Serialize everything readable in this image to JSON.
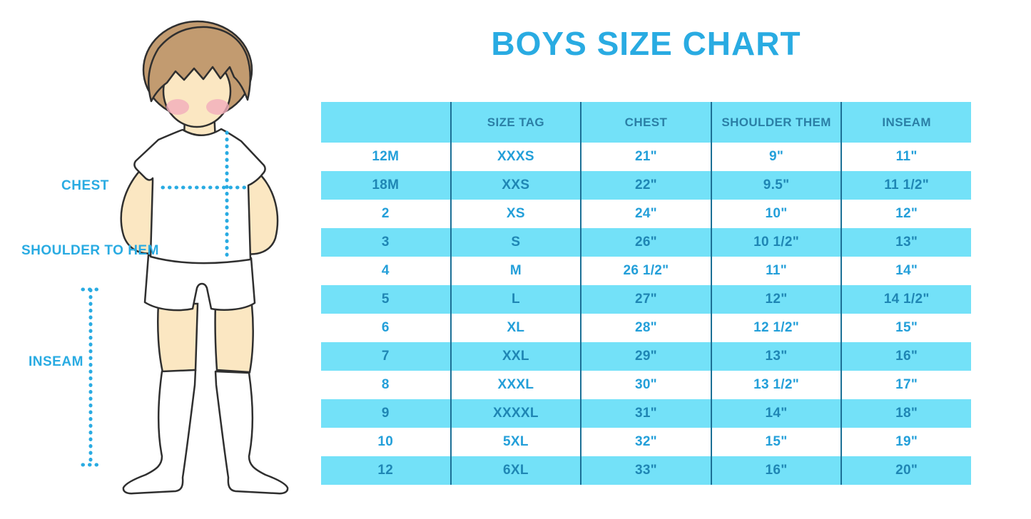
{
  "title": "BOYS SIZE CHART",
  "colors": {
    "title_blue": "#29ABE2",
    "band_cyan": "#73E1F8",
    "divider_blue": "#1C7096",
    "text_on_white_row": "#239FD9",
    "text_on_cyan_row": "#1F86B4",
    "header_text": "#2B7FA6",
    "dotted_line": "#29ABE2",
    "skin": "#FBE7C2",
    "hair": "#C29B70",
    "outline": "#2F2F2F",
    "cheek_pink": "#F2AEBB"
  },
  "figure": {
    "description": "boy-illustration",
    "labels": {
      "chest": "CHEST",
      "shoulder_to_hem": "SHOULDER TO HEM",
      "inseam": "INSEAM"
    }
  },
  "chart_data": {
    "type": "table",
    "title": "BOYS SIZE CHART",
    "columns": [
      "",
      "SIZE TAG",
      "CHEST",
      "SHOULDER THEM",
      "INSEAM"
    ],
    "rows": [
      [
        "12M",
        "XXXS",
        "21\"",
        "9\"",
        "11\""
      ],
      [
        "18M",
        "XXS",
        "22\"",
        "9.5\"",
        "11 1/2\""
      ],
      [
        "2",
        "XS",
        "24\"",
        "10\"",
        "12\""
      ],
      [
        "3",
        "S",
        "26\"",
        "10 1/2\"",
        "13\""
      ],
      [
        "4",
        "M",
        "26 1/2\"",
        "11\"",
        "14\""
      ],
      [
        "5",
        "L",
        "27\"",
        "12\"",
        "14 1/2\""
      ],
      [
        "6",
        "XL",
        "28\"",
        "12 1/2\"",
        "15\""
      ],
      [
        "7",
        "XXL",
        "29\"",
        "13\"",
        "16\""
      ],
      [
        "8",
        "XXXL",
        "30\"",
        "13 1/2\"",
        "17\""
      ],
      [
        "9",
        "XXXXL",
        "31\"",
        "14\"",
        "18\""
      ],
      [
        "10",
        "5XL",
        "32\"",
        "15\"",
        "19\""
      ],
      [
        "12",
        "6XL",
        "33\"",
        "16\"",
        "20\""
      ]
    ],
    "row_shading": "header cyan, then alternating white/cyan starting white",
    "legend_position": "none",
    "grid": "vertical dividers only"
  }
}
